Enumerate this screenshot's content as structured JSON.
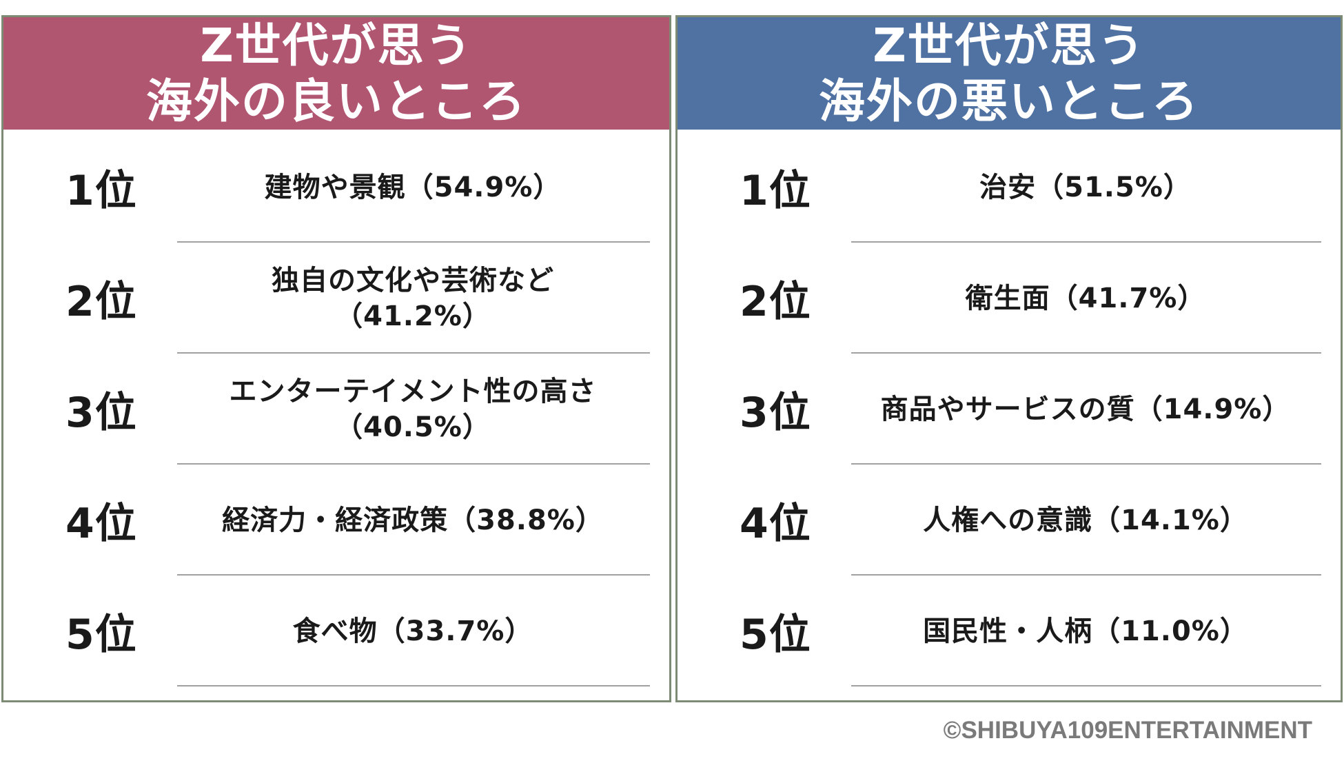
{
  "chart_data": {
    "type": "table",
    "tables": [
      {
        "title_lines": [
          "Z世代が思う",
          "海外の良いところ"
        ],
        "header_color": "#b15671",
        "rows": [
          {
            "rank": "1位",
            "text_lines": [
              "建物や景観（54.9%）"
            ],
            "value": 54.9
          },
          {
            "rank": "2位",
            "text_lines": [
              "独自の文化や芸術など",
              "（41.2%）"
            ],
            "value": 41.2
          },
          {
            "rank": "3位",
            "text_lines": [
              "エンターテイメント性の高さ",
              "（40.5%）"
            ],
            "value": 40.5
          },
          {
            "rank": "4位",
            "text_lines": [
              "経済力・経済政策（38.8%）"
            ],
            "value": 38.8
          },
          {
            "rank": "5位",
            "text_lines": [
              "食べ物（33.7%）"
            ],
            "value": 33.7
          }
        ]
      },
      {
        "title_lines": [
          "Z世代が思う",
          "海外の悪いところ"
        ],
        "header_color": "#4f72a3",
        "rows": [
          {
            "rank": "1位",
            "text_lines": [
              "治安（51.5%）"
            ],
            "value": 51.5
          },
          {
            "rank": "2位",
            "text_lines": [
              "衛生面（41.7%）"
            ],
            "value": 41.7
          },
          {
            "rank": "3位",
            "text_lines": [
              "商品やサービスの質（14.9%）"
            ],
            "value": 14.9
          },
          {
            "rank": "4位",
            "text_lines": [
              "人権への意識（14.1%）"
            ],
            "value": 14.1
          },
          {
            "rank": "5位",
            "text_lines": [
              "国民性・人柄（11.0%）"
            ],
            "value": 11.0
          }
        ]
      }
    ]
  },
  "copyright": "©SHIBUYA109ENTERTAINMENT"
}
